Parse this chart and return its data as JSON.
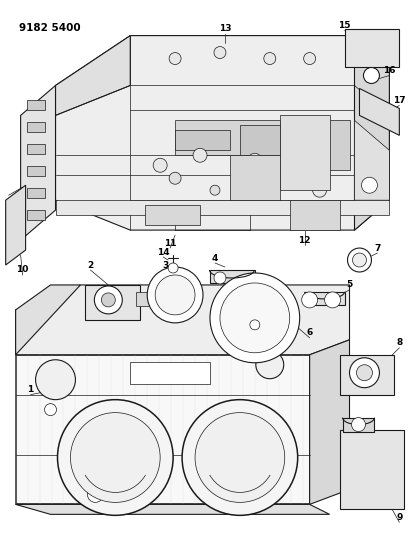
{
  "title": "9182 5400",
  "bg": "#ffffff",
  "lc": "#1a1a1a",
  "fig_w": 4.11,
  "fig_h": 5.33,
  "dpi": 100
}
